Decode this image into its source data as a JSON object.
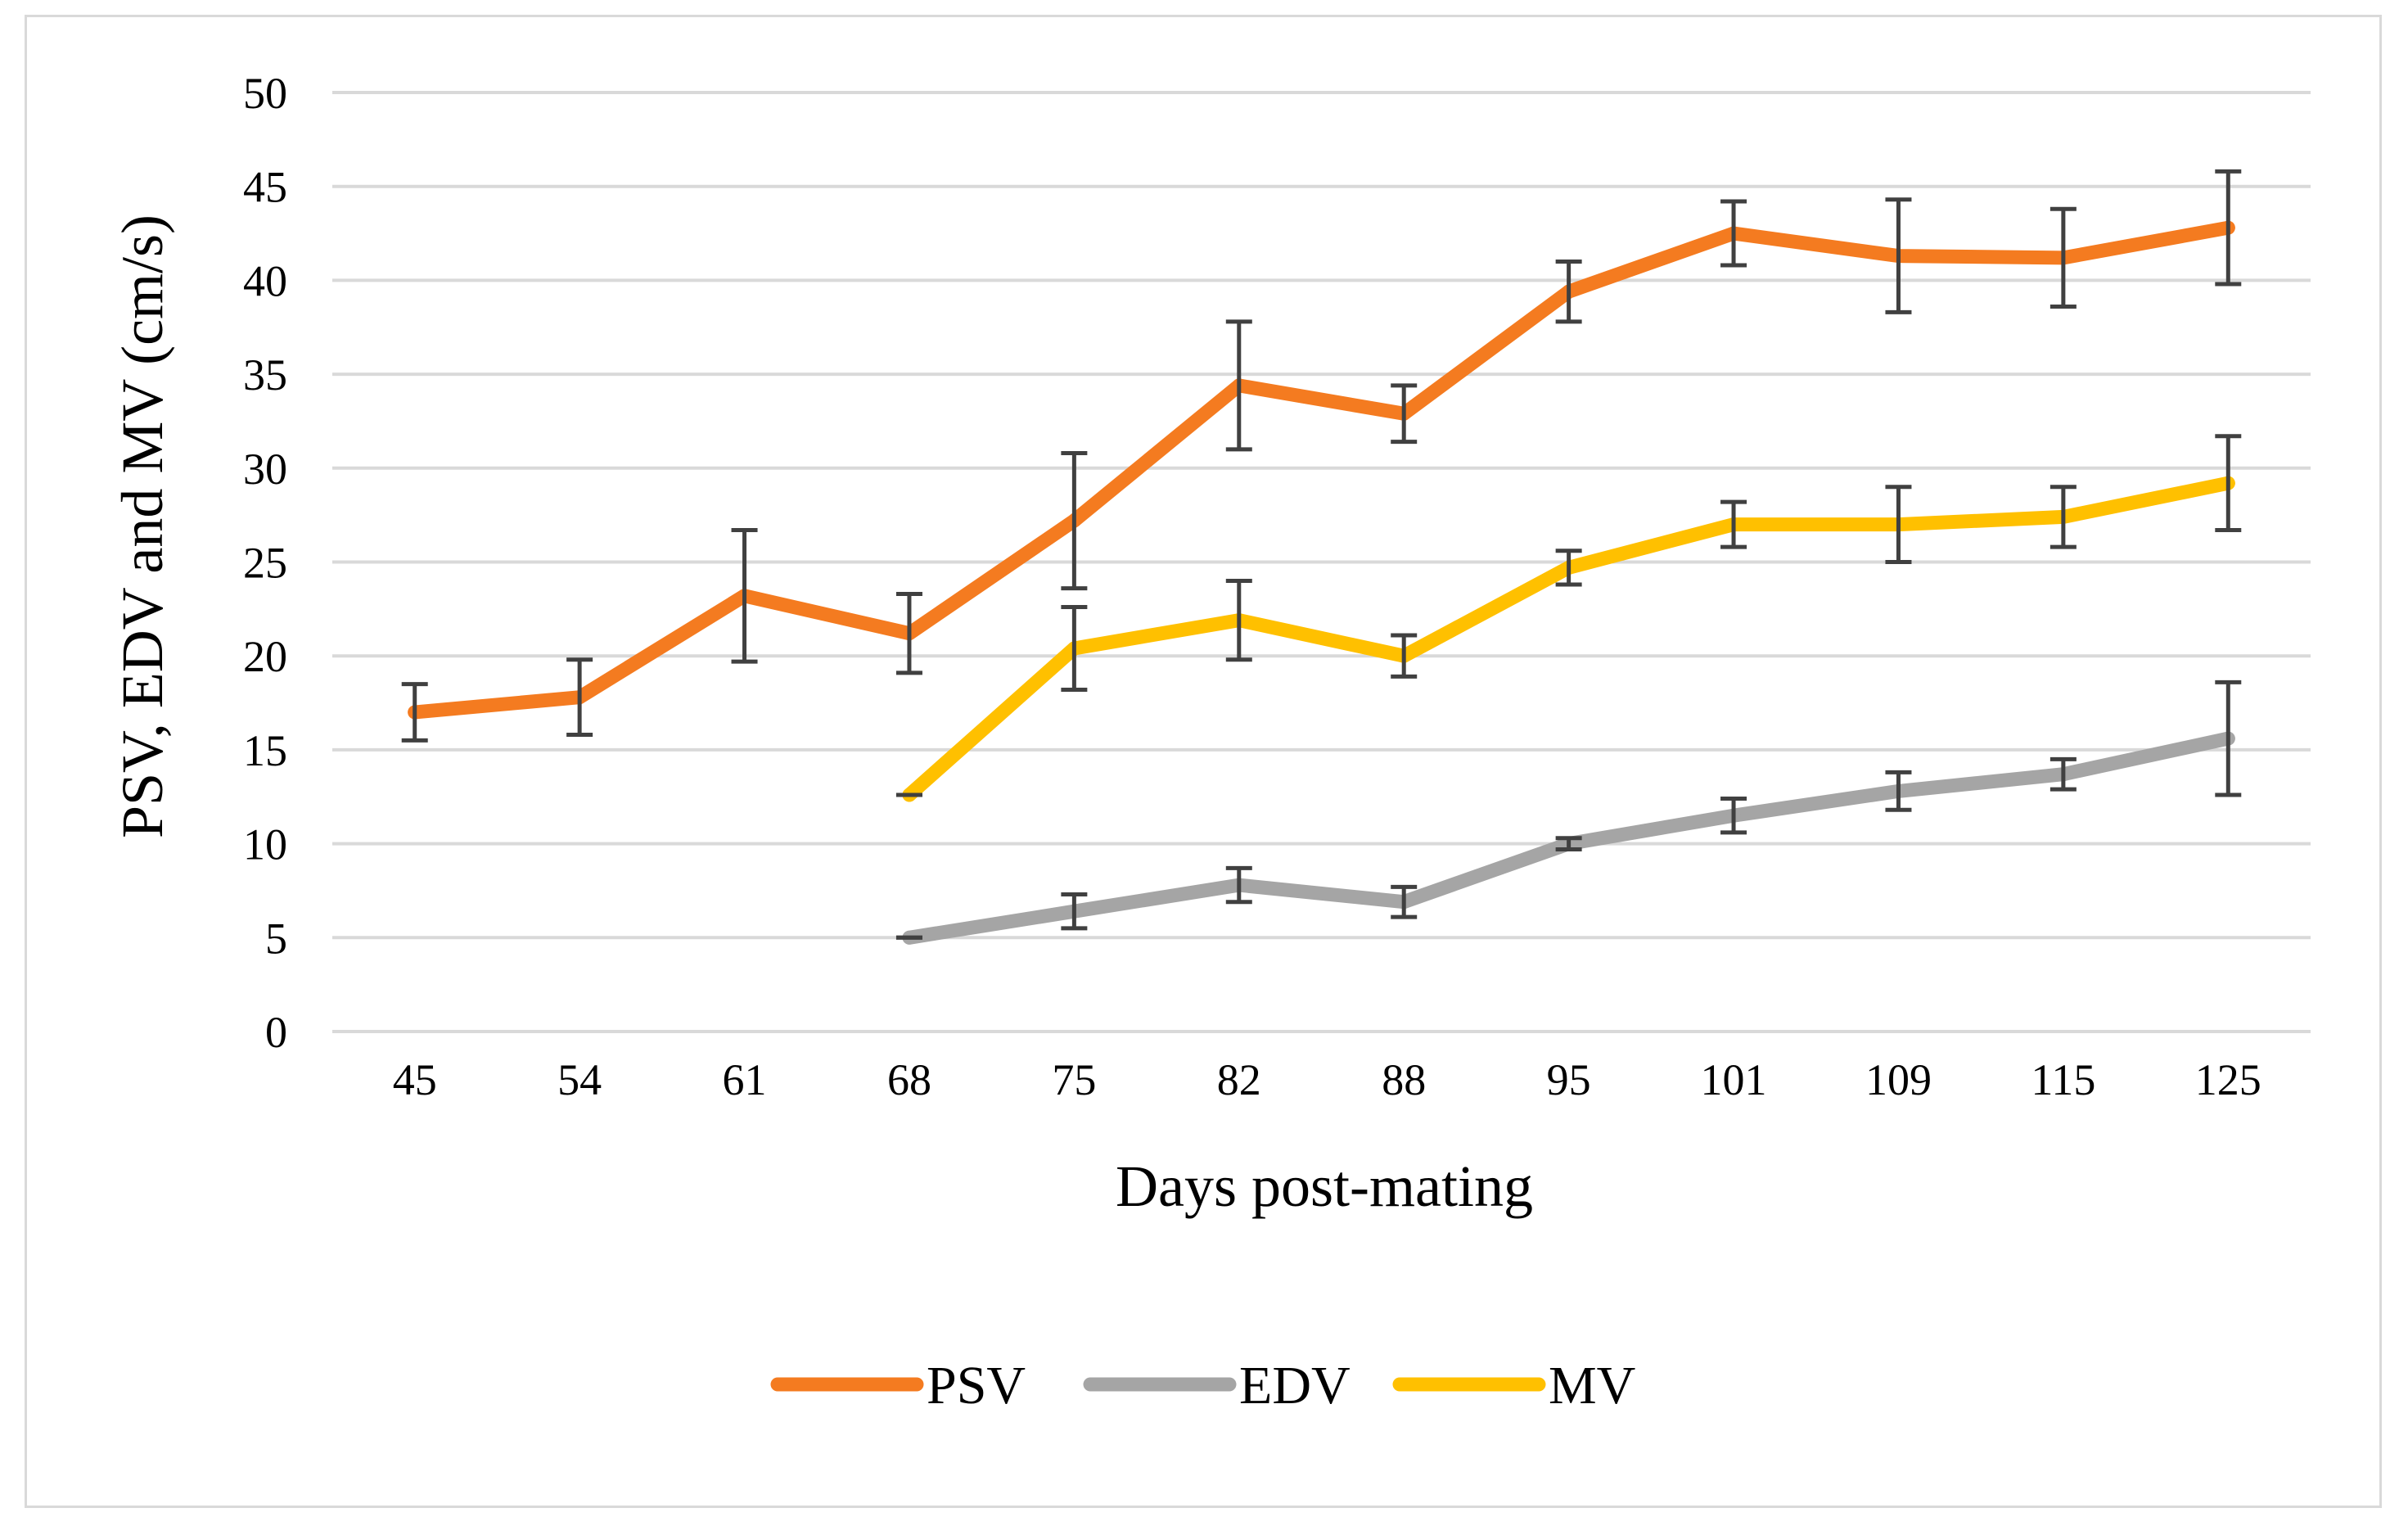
{
  "chart_data": {
    "type": "line",
    "title": "",
    "xlabel": "Days post-mating",
    "ylabel": "PSV, EDV and  MV (cm/s)",
    "ylim": [
      0,
      50
    ],
    "yticks": [
      0,
      5,
      10,
      15,
      20,
      25,
      30,
      35,
      40,
      45,
      50
    ],
    "grid": true,
    "legend_position": "bottom",
    "categories": [
      "45",
      "54",
      "61",
      "68",
      "75",
      "82",
      "88",
      "95",
      "101",
      "109",
      "115",
      "125"
    ],
    "series": [
      {
        "name": "PSV",
        "color": "#F47B20",
        "values": [
          17.0,
          17.8,
          23.2,
          21.2,
          27.2,
          34.4,
          32.9,
          39.4,
          42.5,
          41.3,
          41.2,
          42.8
        ],
        "errors": [
          1.5,
          2.0,
          3.5,
          2.1,
          3.6,
          3.4,
          1.5,
          1.6,
          1.7,
          3.0,
          2.6,
          3.0
        ]
      },
      {
        "name": "EDV",
        "color": "#A5A5A5",
        "values": [
          null,
          null,
          null,
          5.0,
          6.4,
          7.8,
          6.9,
          10.0,
          11.5,
          12.8,
          13.7,
          15.6
        ],
        "errors": [
          null,
          null,
          null,
          0.0,
          0.9,
          0.9,
          0.8,
          0.3,
          0.9,
          1.0,
          0.8,
          3.0
        ]
      },
      {
        "name": "MV",
        "color": "#FFC000",
        "values": [
          null,
          null,
          null,
          12.6,
          20.4,
          21.9,
          20.0,
          24.7,
          27.0,
          27.0,
          27.4,
          29.2
        ],
        "errors": [
          null,
          null,
          null,
          0.0,
          2.2,
          2.1,
          1.1,
          0.9,
          1.2,
          2.0,
          1.6,
          2.5
        ]
      }
    ]
  }
}
